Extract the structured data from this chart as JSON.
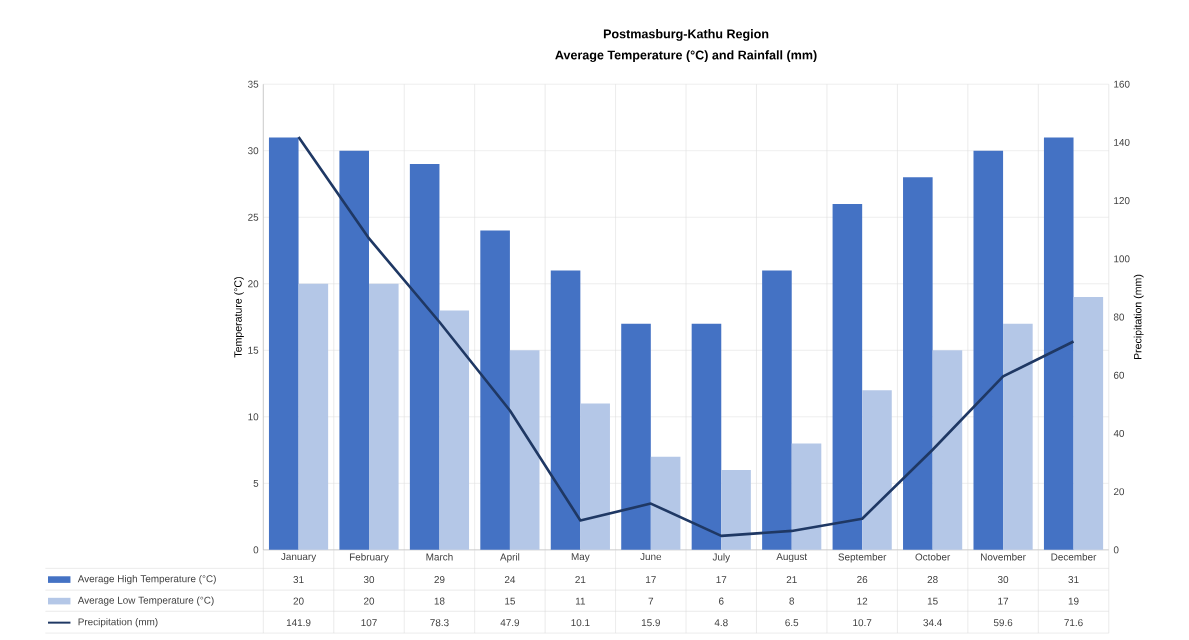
{
  "chart_data": {
    "type": "bar",
    "title": "Postmasburg-Kathu Region",
    "subtitle": "Average Temperature (°C) and Rainfall (mm)",
    "ylabel": "Temperature (°C)",
    "y2label": "Precipitation (mm)",
    "categories": [
      "January",
      "February",
      "March",
      "April",
      "May",
      "June",
      "July",
      "August",
      "September",
      "October",
      "November",
      "December"
    ],
    "series": [
      {
        "name": "Average High Temperature (°C)",
        "color": "#4472c4",
        "values": [
          31,
          30,
          29,
          24,
          21,
          17,
          17,
          21,
          26,
          28,
          30,
          31
        ]
      },
      {
        "name": "Average Low Temperature (°C)",
        "color": "#b4c7e7",
        "values": [
          20,
          20,
          18,
          15,
          11,
          7,
          6,
          8,
          12,
          15,
          17,
          19
        ]
      },
      {
        "name": "Precipitation (mm)",
        "color": "#1f3864",
        "type": "line",
        "axis": "y2",
        "values": [
          141.9,
          107,
          78.3,
          47.9,
          10.1,
          15.9,
          4.8,
          6.5,
          10.7,
          34.4,
          59.6,
          71.6
        ]
      }
    ],
    "ylim": [
      0,
      35
    ],
    "yticks": [
      0,
      5,
      10,
      15,
      20,
      25,
      30,
      35
    ],
    "y2lim": [
      0,
      160
    ],
    "y2ticks": [
      0,
      20,
      40,
      60,
      80,
      100,
      120,
      140,
      160
    ],
    "grid": true,
    "legend": "bottom",
    "data_labels": true
  }
}
